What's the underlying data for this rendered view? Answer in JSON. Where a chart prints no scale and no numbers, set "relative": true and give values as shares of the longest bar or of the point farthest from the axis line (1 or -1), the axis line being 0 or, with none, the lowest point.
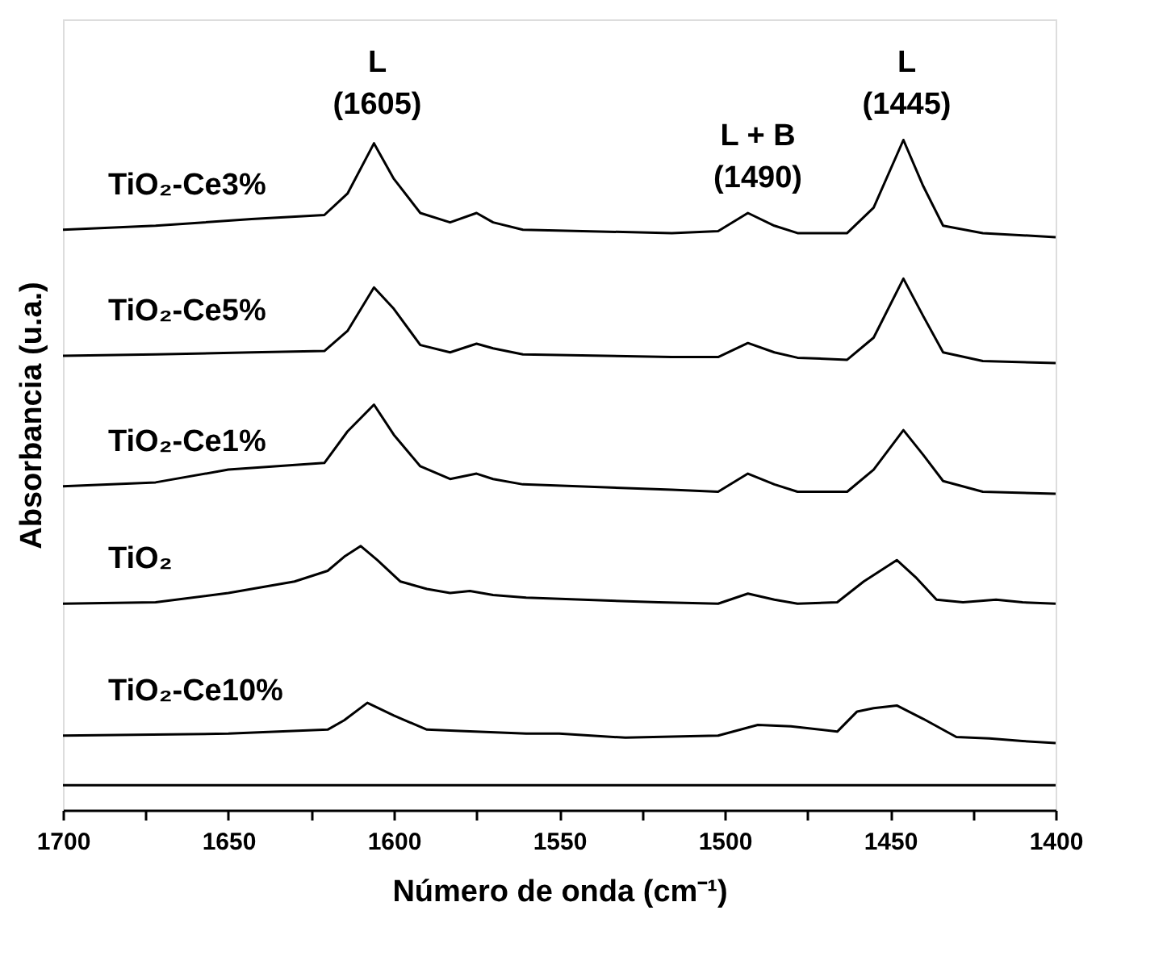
{
  "chart_data": {
    "type": "line",
    "relative": true,
    "xlabel": "Número de onda (cm⁻¹)",
    "ylabel": "Absorbancia (u.a.)",
    "xlim": [
      1700,
      1400
    ],
    "xticks": [
      1700,
      {
        "value": 1675,
        "label": null
      },
      1650,
      {
        "value": 1625,
        "label": null
      },
      1600,
      {
        "value": 1575,
        "label": null
      },
      1550,
      {
        "value": 1525,
        "label": null
      },
      1500,
      {
        "value": 1475,
        "label": null
      },
      1450,
      {
        "value": 1425,
        "label": null
      },
      1400
    ],
    "grid": false,
    "marker": "none",
    "line_style": "solid",
    "series": [
      {
        "name": "TiO₂-Ce3%",
        "color": "#000000",
        "x": [
          1700,
          1672,
          1643,
          1621,
          1614,
          1606,
          1600,
          1592,
          1583,
          1575,
          1570,
          1561,
          1516,
          1502,
          1493,
          1485,
          1478,
          1463,
          1455,
          1446,
          1440,
          1434,
          1422,
          1400
        ],
        "values": [
          0.866,
          0.872,
          0.882,
          0.888,
          0.92,
          0.995,
          0.942,
          0.891,
          0.877,
          0.891,
          0.877,
          0.866,
          0.861,
          0.864,
          0.891,
          0.872,
          0.861,
          0.861,
          0.899,
          1.0,
          0.931,
          0.872,
          0.861,
          0.855
        ]
      },
      {
        "name": "TiO₂-Ce5%",
        "color": "#000000",
        "x": [
          1700,
          1672,
          1643,
          1621,
          1614,
          1606,
          1600,
          1592,
          1583,
          1575,
          1570,
          1561,
          1516,
          1502,
          1493,
          1485,
          1478,
          1463,
          1455,
          1446,
          1440,
          1434,
          1422,
          1400
        ],
        "values": [
          0.678,
          0.68,
          0.683,
          0.685,
          0.715,
          0.78,
          0.748,
          0.694,
          0.683,
          0.696,
          0.689,
          0.68,
          0.676,
          0.676,
          0.697,
          0.683,
          0.675,
          0.672,
          0.705,
          0.793,
          0.737,
          0.683,
          0.67,
          0.667
        ]
      },
      {
        "name": "TiO₂-Ce1%",
        "color": "#000000",
        "x": [
          1700,
          1672,
          1650,
          1621,
          1614,
          1606,
          1600,
          1592,
          1583,
          1575,
          1570,
          1561,
          1516,
          1502,
          1493,
          1485,
          1478,
          1463,
          1455,
          1446,
          1440,
          1434,
          1422,
          1400
        ],
        "values": [
          0.483,
          0.489,
          0.508,
          0.518,
          0.565,
          0.605,
          0.56,
          0.513,
          0.494,
          0.502,
          0.494,
          0.486,
          0.478,
          0.475,
          0.502,
          0.486,
          0.475,
          0.475,
          0.508,
          0.567,
          0.53,
          0.491,
          0.475,
          0.472
        ]
      },
      {
        "name": "TiO₂",
        "color": "#000000",
        "x": [
          1700,
          1672,
          1650,
          1630,
          1620,
          1615,
          1610,
          1605,
          1598,
          1590,
          1583,
          1577,
          1570,
          1560,
          1520,
          1502,
          1493,
          1485,
          1478,
          1466,
          1458,
          1448,
          1442,
          1436,
          1428,
          1418,
          1410,
          1400
        ],
        "values": [
          0.308,
          0.31,
          0.324,
          0.341,
          0.357,
          0.378,
          0.394,
          0.373,
          0.341,
          0.33,
          0.324,
          0.327,
          0.321,
          0.317,
          0.31,
          0.308,
          0.323,
          0.314,
          0.308,
          0.31,
          0.341,
          0.373,
          0.346,
          0.314,
          0.31,
          0.314,
          0.31,
          0.308
        ]
      },
      {
        "name": "TiO₂-Ce10%",
        "color": "#000000",
        "x": [
          1700,
          1650,
          1620,
          1615,
          1608,
          1600,
          1590,
          1580,
          1560,
          1550,
          1530,
          1502,
          1490,
          1480,
          1466,
          1460,
          1455,
          1448,
          1440,
          1430,
          1420,
          1410,
          1400
        ],
        "values": [
          0.111,
          0.114,
          0.12,
          0.134,
          0.16,
          0.141,
          0.12,
          0.118,
          0.114,
          0.114,
          0.108,
          0.111,
          0.127,
          0.125,
          0.117,
          0.147,
          0.152,
          0.156,
          0.136,
          0.109,
          0.107,
          0.103,
          0.1
        ]
      },
      {
        "color": "#000000",
        "x": [
          1700,
          1400
        ],
        "values": [
          0.037,
          0.037
        ]
      }
    ],
    "annotations": [
      {
        "text": "L\n(1605)",
        "x": 1605,
        "y": 1.0
      },
      {
        "text": "L + B\n(1490)",
        "x": 1490,
        "y": 0.891
      },
      {
        "text": "L\n(1445)",
        "x": 1445,
        "y": 1.0
      }
    ]
  }
}
